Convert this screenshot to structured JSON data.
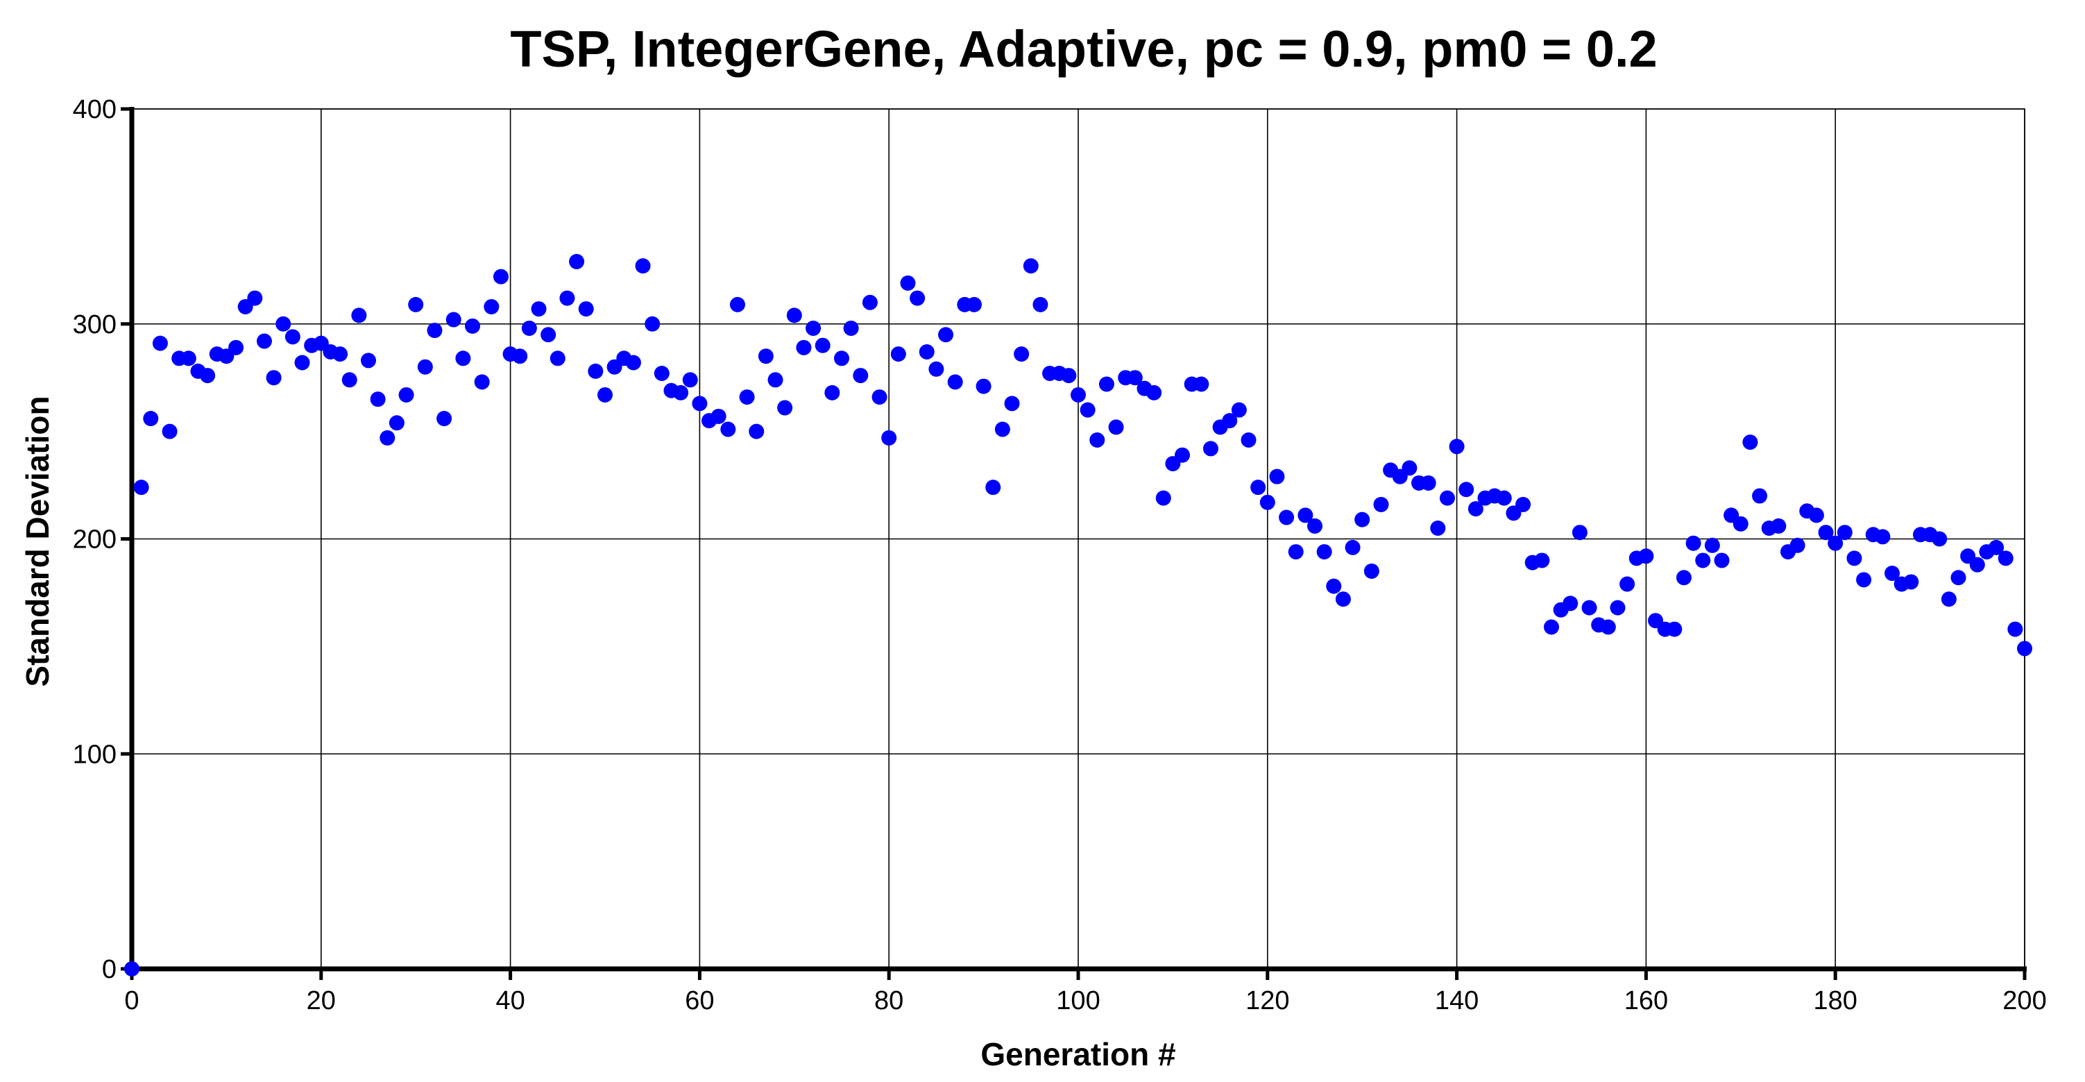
{
  "chart_data": {
    "type": "scatter",
    "title": "TSP, IntegerGene, Adaptive, pc = 0.9, pm0 = 0.2",
    "xlabel": "Generation #",
    "ylabel": "Standard Deviation",
    "xlim": [
      0,
      200
    ],
    "ylim": [
      0,
      400
    ],
    "xticks": [
      0,
      20,
      40,
      60,
      80,
      100,
      120,
      140,
      160,
      180,
      200
    ],
    "yticks": [
      0,
      100,
      200,
      300,
      400
    ],
    "grid": true,
    "marker_color": "#0000ff",
    "series": [
      {
        "x": [
          0,
          1,
          2,
          3,
          4,
          5,
          6,
          7,
          8,
          9,
          10,
          11,
          12,
          13,
          14,
          15,
          16,
          17,
          18,
          19,
          20,
          21,
          22,
          23,
          24,
          25,
          26,
          27,
          28,
          29,
          30,
          31,
          32,
          33,
          34,
          35,
          36,
          37,
          38,
          39,
          40,
          41,
          42,
          43,
          44,
          45,
          46,
          47,
          48,
          49,
          50,
          51,
          52,
          53,
          54,
          55,
          56,
          57,
          58,
          59,
          60,
          61,
          62,
          63,
          64,
          65,
          66,
          67,
          68,
          69,
          70,
          71,
          72,
          73,
          74,
          75,
          76,
          77,
          78,
          79,
          80,
          81,
          82,
          83,
          84,
          85,
          86,
          87,
          88,
          89,
          90,
          91,
          92,
          93,
          94,
          95,
          96,
          97,
          98,
          99,
          100,
          101,
          102,
          103,
          104,
          105,
          106,
          107,
          108,
          109,
          110,
          111,
          112,
          113,
          114,
          115,
          116,
          117,
          118,
          119,
          120,
          121,
          122,
          123,
          124,
          125,
          126,
          127,
          128,
          129,
          130,
          131,
          132,
          133,
          134,
          135,
          136,
          137,
          138,
          139,
          140,
          141,
          142,
          143,
          144,
          145,
          146,
          147,
          148,
          149,
          150,
          151,
          152,
          153,
          154,
          155,
          156,
          157,
          158,
          159,
          160,
          161,
          162,
          163,
          164,
          165,
          166,
          167,
          168,
          169,
          170,
          171,
          172,
          173,
          174,
          175,
          176,
          177,
          178,
          179,
          180,
          181,
          182,
          183,
          184,
          185,
          186,
          187,
          188,
          189,
          190,
          191,
          192,
          193,
          194,
          195,
          196,
          197,
          198,
          199,
          200
        ],
        "y": [
          0,
          224,
          256,
          291,
          250,
          284,
          284,
          278,
          276,
          286,
          285,
          289,
          308,
          312,
          292,
          275,
          300,
          294,
          282,
          290,
          291,
          287,
          286,
          274,
          304,
          283,
          265,
          247,
          254,
          267,
          309,
          280,
          297,
          256,
          302,
          284,
          299,
          273,
          308,
          322,
          286,
          285,
          298,
          307,
          295,
          284,
          312,
          329,
          307,
          278,
          267,
          280,
          284,
          282,
          327,
          300,
          277,
          269,
          268,
          274,
          263,
          255,
          257,
          251,
          309,
          266,
          250,
          285,
          274,
          261,
          304,
          289,
          298,
          290,
          268,
          284,
          298,
          276,
          310,
          266,
          247,
          286,
          319,
          312,
          287,
          279,
          295,
          273,
          309,
          309,
          271,
          224,
          251,
          263,
          286,
          327,
          309,
          277,
          277,
          276,
          267,
          260,
          246,
          272,
          252,
          275,
          275,
          270,
          268,
          219,
          235,
          239,
          272,
          272,
          242,
          252,
          255,
          260,
          246,
          224,
          217,
          229,
          210,
          194,
          211,
          206,
          194,
          178,
          172,
          196,
          209,
          185,
          216,
          232,
          229,
          233,
          226,
          226,
          205,
          219,
          243,
          223,
          214,
          219,
          220,
          219,
          212,
          216,
          189,
          190,
          159,
          167,
          170,
          203,
          168,
          160,
          159,
          168,
          179,
          191,
          192,
          162,
          158,
          158,
          182,
          198,
          190,
          197,
          190,
          211,
          207,
          245,
          220,
          205,
          206,
          194,
          197,
          213,
          211,
          203,
          198,
          203,
          191,
          181,
          202,
          201,
          184,
          179,
          180,
          202,
          202,
          200,
          172,
          182,
          192,
          188,
          194,
          196,
          191,
          158,
          149
        ]
      }
    ]
  }
}
